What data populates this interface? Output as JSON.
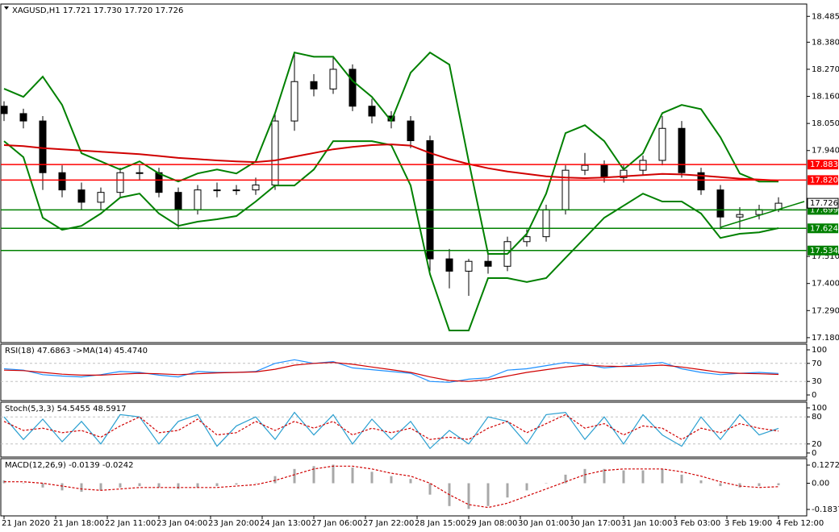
{
  "chart_data": [
    {
      "type": "candlestick",
      "title": "XAGUSD,H1  17.721 17.730 17.720 17.726",
      "xlim": [
        -1,
        248.75
      ],
      "ylim": [
        17.16,
        18.535
      ],
      "yticks": [
        18.485,
        {
          "value": 18.38,
          "label": "18.380"
        },
        {
          "value": 18.27,
          "label": "18.270"
        },
        {
          "value": 18.16,
          "label": "18.160"
        },
        {
          "value": 18.05,
          "label": "18.050"
        },
        {
          "value": 17.94,
          "label": "17.940"
        },
        {
          "value": 17.51,
          "label": "17.510"
        },
        {
          "value": 17.4,
          "label": "17.400"
        },
        {
          "value": 17.29,
          "label": "17.290"
        },
        {
          "value": 17.18,
          "label": "17.180"
        }
      ],
      "x": [
        0,
        6,
        12,
        18,
        24,
        30,
        36,
        42,
        48,
        54,
        60,
        66,
        72,
        78,
        84,
        90,
        96,
        102,
        108,
        114,
        120,
        126,
        132,
        138,
        144,
        150,
        156,
        162,
        168,
        174,
        180,
        186,
        192,
        198,
        204,
        210,
        216,
        222,
        228,
        234,
        240
      ],
      "open": [
        18.12,
        18.09,
        18.06,
        17.85,
        17.78,
        17.73,
        17.77,
        17.85,
        17.85,
        17.77,
        17.7,
        17.78,
        17.78,
        17.78,
        17.8,
        18.06,
        18.22,
        18.19,
        18.27,
        18.12,
        18.08,
        18.06,
        17.98,
        17.5,
        17.45,
        17.49,
        17.47,
        17.57,
        17.59,
        17.7,
        17.86,
        17.88,
        17.83,
        17.86,
        17.9,
        18.03,
        17.85,
        17.78,
        17.67,
        17.68,
        17.7
      ],
      "high": [
        18.14,
        18.11,
        18.08,
        17.88,
        17.81,
        17.79,
        17.87,
        17.88,
        17.87,
        17.79,
        17.8,
        17.81,
        17.8,
        17.83,
        18.09,
        18.34,
        18.25,
        18.32,
        18.29,
        18.15,
        18.1,
        18.08,
        18.0,
        17.54,
        17.5,
        17.52,
        17.59,
        17.62,
        17.72,
        17.88,
        17.93,
        17.9,
        17.88,
        17.92,
        18.08,
        18.06,
        17.87,
        17.8,
        17.71,
        17.72,
        17.75
      ],
      "low": [
        18.06,
        18.03,
        17.78,
        17.75,
        17.7,
        17.7,
        17.75,
        17.82,
        17.75,
        17.62,
        17.68,
        17.75,
        17.76,
        17.76,
        17.78,
        18.02,
        18.16,
        18.17,
        18.1,
        18.05,
        18.03,
        17.95,
        17.45,
        17.38,
        17.35,
        17.44,
        17.45,
        17.55,
        17.57,
        17.68,
        17.84,
        17.81,
        17.81,
        17.84,
        17.88,
        17.83,
        17.76,
        17.62,
        17.62,
        17.66,
        17.69
      ],
      "close": [
        18.09,
        18.06,
        17.85,
        17.78,
        17.73,
        17.77,
        17.85,
        17.85,
        17.77,
        17.7,
        17.78,
        17.78,
        17.78,
        17.8,
        18.06,
        18.22,
        18.19,
        18.27,
        18.12,
        18.08,
        18.06,
        17.98,
        17.5,
        17.45,
        17.49,
        17.47,
        17.57,
        17.59,
        17.7,
        17.86,
        17.88,
        17.83,
        17.86,
        17.9,
        18.03,
        17.85,
        17.78,
        17.67,
        17.68,
        17.7,
        17.726
      ],
      "series": [
        {
          "color": "#008000",
          "values": [
            18.191,
            18.158,
            18.24,
            18.125,
            17.929,
            17.896,
            17.863,
            17.896,
            17.847,
            17.814,
            17.847,
            17.863,
            17.847,
            17.896,
            18.092,
            18.338,
            18.321,
            18.321,
            18.223,
            18.158,
            18.06,
            18.256,
            18.338,
            18.289,
            17.896,
            17.52,
            17.52,
            17.602,
            17.765,
            18.011,
            18.043,
            17.978,
            17.863,
            17.929,
            18.092,
            18.125,
            18.108,
            17.994,
            17.847,
            17.814,
            17.814
          ]
        },
        {
          "color": "#008000",
          "values": [
            17.978,
            17.913,
            17.667,
            17.618,
            17.634,
            17.684,
            17.749,
            17.765,
            17.684,
            17.634,
            17.651,
            17.661,
            17.674,
            17.733,
            17.798,
            17.798,
            17.863,
            17.978,
            17.978,
            17.978,
            17.962,
            17.798,
            17.438,
            17.209,
            17.209,
            17.422,
            17.422,
            17.406,
            17.422,
            17.504,
            17.585,
            17.667,
            17.716,
            17.765,
            17.733,
            17.733,
            17.684,
            17.585,
            17.602,
            17.608,
            17.625
          ]
        },
        {
          "color": "#d00000",
          "values": [
            17.962,
            17.958,
            17.95,
            17.945,
            17.94,
            17.935,
            17.93,
            17.925,
            17.918,
            17.91,
            17.905,
            17.9,
            17.896,
            17.893,
            17.9,
            17.915,
            17.93,
            17.945,
            17.955,
            17.962,
            17.965,
            17.96,
            17.93,
            17.905,
            17.885,
            17.868,
            17.855,
            17.845,
            17.835,
            17.83,
            17.828,
            17.83,
            17.835,
            17.84,
            17.845,
            17.843,
            17.838,
            17.832,
            17.826,
            17.822,
            17.818
          ]
        }
      ],
      "levels": [
        {
          "value": 17.883,
          "color": "#ff0000"
        },
        {
          "value": 17.82,
          "label": "17.820",
          "color": "#ff0000"
        },
        {
          "value": 17.699,
          "color": "#008000"
        },
        {
          "value": 17.624,
          "color": "#008000"
        },
        {
          "value": 17.534,
          "color": "#008000"
        }
      ],
      "trendline": {
        "x": [
          222,
          248
        ],
        "values": [
          17.628,
          17.733
        ],
        "color": "#008000"
      },
      "last_price": 17.726
    },
    {
      "type": "line",
      "title": "RSI(18) 47.6863  ->MA(14) 45.4740",
      "xlim": [
        -1,
        248.75
      ],
      "ylim": [
        -12.5,
        112.5
      ],
      "yticks": [
        100,
        70,
        30,
        0
      ],
      "dashed_levels": [
        70,
        30
      ],
      "x": [
        0,
        6,
        12,
        18,
        24,
        30,
        36,
        42,
        48,
        54,
        60,
        66,
        72,
        78,
        84,
        90,
        96,
        102,
        108,
        114,
        120,
        126,
        132,
        138,
        144,
        150,
        156,
        162,
        168,
        174,
        180,
        186,
        192,
        198,
        204,
        210,
        216,
        222,
        228,
        234,
        240
      ],
      "series": [
        {
          "color": "#1e90ff",
          "values": [
            58,
            55,
            45,
            42,
            40,
            45,
            52,
            50,
            44,
            40,
            52,
            50,
            50,
            52,
            70,
            78,
            70,
            74,
            60,
            56,
            52,
            48,
            30,
            28,
            35,
            38,
            55,
            58,
            65,
            72,
            68,
            60,
            64,
            68,
            72,
            58,
            50,
            45,
            48,
            50,
            47.6863
          ]
        },
        {
          "color": "#d00000",
          "values": [
            55,
            54,
            50,
            46,
            44,
            44,
            46,
            48,
            47,
            45,
            47,
            49,
            50,
            51,
            57,
            66,
            70,
            72,
            68,
            62,
            56,
            50,
            40,
            32,
            30,
            34,
            42,
            50,
            56,
            62,
            66,
            64,
            63,
            64,
            66,
            62,
            56,
            50,
            48,
            47,
            45.474
          ]
        }
      ]
    },
    {
      "type": "line",
      "title": "Stoch(5,3,3) 54.5455 48.5917",
      "xlim": [
        -1,
        248.75
      ],
      "ylim": [
        -9,
        112.5
      ],
      "yticks": [
        100,
        80,
        20,
        0
      ],
      "dashed_levels": [
        80,
        20
      ],
      "x": [
        0,
        6,
        12,
        18,
        24,
        30,
        36,
        42,
        48,
        54,
        60,
        66,
        72,
        78,
        84,
        90,
        96,
        102,
        108,
        114,
        120,
        126,
        132,
        138,
        144,
        150,
        156,
        162,
        168,
        174,
        180,
        186,
        192,
        198,
        204,
        210,
        216,
        222,
        228,
        234,
        240
      ],
      "series": [
        {
          "color": "#2a9fd0",
          "values": [
            80,
            30,
            75,
            25,
            70,
            20,
            85,
            80,
            20,
            70,
            85,
            15,
            60,
            80,
            30,
            90,
            40,
            85,
            20,
            75,
            30,
            70,
            10,
            50,
            20,
            80,
            70,
            20,
            85,
            90,
            30,
            80,
            20,
            85,
            40,
            15,
            80,
            30,
            85,
            40,
            54.5455
          ]
        },
        {
          "color": "#d00000",
          "dash": true,
          "values": [
            70,
            50,
            55,
            45,
            50,
            35,
            60,
            80,
            45,
            50,
            75,
            40,
            45,
            70,
            50,
            70,
            55,
            70,
            40,
            55,
            45,
            55,
            30,
            35,
            30,
            55,
            70,
            45,
            65,
            85,
            55,
            65,
            40,
            60,
            55,
            30,
            55,
            45,
            65,
            55,
            48.5917
          ]
        }
      ]
    },
    {
      "type": "bar",
      "title": "MACD(12,26,9) -0.0139 -0.0242",
      "xlim": [
        -1,
        248.75
      ],
      "ylim": [
        -0.2289,
        0.1724
      ],
      "yticks": [
        0.1272,
        {
          "value": 0,
          "label": "0.00"
        },
        -0.1837
      ],
      "xticks": [
        {
          "value": 0,
          "label": "21 Jan 2020"
        },
        {
          "value": 16,
          "label": "21 Jan 18:00"
        },
        {
          "value": 32,
          "label": "22 Jan 11:00"
        },
        {
          "value": 48,
          "label": "23 Jan 04:00"
        },
        {
          "value": 64,
          "label": "23 Jan 20:00"
        },
        {
          "value": 80,
          "label": "24 Jan 13:00"
        },
        {
          "value": 96,
          "label": "27 Jan 06:00"
        },
        {
          "value": 112,
          "label": "27 Jan 22:00"
        },
        {
          "value": 128,
          "label": "28 Jan 15:00"
        },
        {
          "value": 144,
          "label": "29 Jan 08:00"
        },
        {
          "value": 160,
          "label": "30 Jan 01:00"
        },
        {
          "value": 176,
          "label": "30 Jan 17:00"
        },
        {
          "value": 192,
          "label": "31 Jan 10:00"
        },
        {
          "value": 208,
          "label": "3 Feb 03:00"
        },
        {
          "value": 224,
          "label": "3 Feb 19:00"
        },
        {
          "value": 240,
          "label": "4 Feb 12:00"
        }
      ],
      "x": [
        0,
        6,
        12,
        18,
        24,
        30,
        36,
        42,
        48,
        54,
        60,
        66,
        72,
        78,
        84,
        90,
        96,
        102,
        108,
        114,
        120,
        126,
        132,
        138,
        144,
        150,
        156,
        162,
        168,
        174,
        180,
        186,
        192,
        198,
        204,
        210,
        216,
        222,
        228,
        234,
        240
      ],
      "color": "#a8a8a8",
      "values": [
        0.02,
        0,
        -0.03,
        -0.05,
        -0.06,
        -0.05,
        -0.03,
        -0.02,
        -0.03,
        -0.04,
        -0.03,
        -0.02,
        -0.01,
        0,
        0.05,
        0.1,
        0.12,
        0.13,
        0.11,
        0.08,
        0.05,
        0.03,
        -0.08,
        -0.16,
        -0.18,
        -0.16,
        -0.1,
        -0.05,
        0,
        0.06,
        0.1,
        0.1,
        0.09,
        0.09,
        0.1,
        0.06,
        0.02,
        -0.02,
        -0.03,
        -0.02,
        -0.0139
      ],
      "series": [
        {
          "color": "#d00000",
          "dash": true,
          "values": [
            0.01,
            0.01,
            0,
            -0.02,
            -0.04,
            -0.05,
            -0.04,
            -0.03,
            -0.03,
            -0.03,
            -0.03,
            -0.03,
            -0.02,
            -0.01,
            0.02,
            0.06,
            0.1,
            0.12,
            0.12,
            0.1,
            0.07,
            0.05,
            0,
            -0.08,
            -0.15,
            -0.17,
            -0.14,
            -0.09,
            -0.04,
            0.01,
            0.06,
            0.09,
            0.1,
            0.1,
            0.1,
            0.08,
            0.05,
            0.01,
            -0.02,
            -0.03,
            -0.0242
          ]
        }
      ]
    }
  ]
}
